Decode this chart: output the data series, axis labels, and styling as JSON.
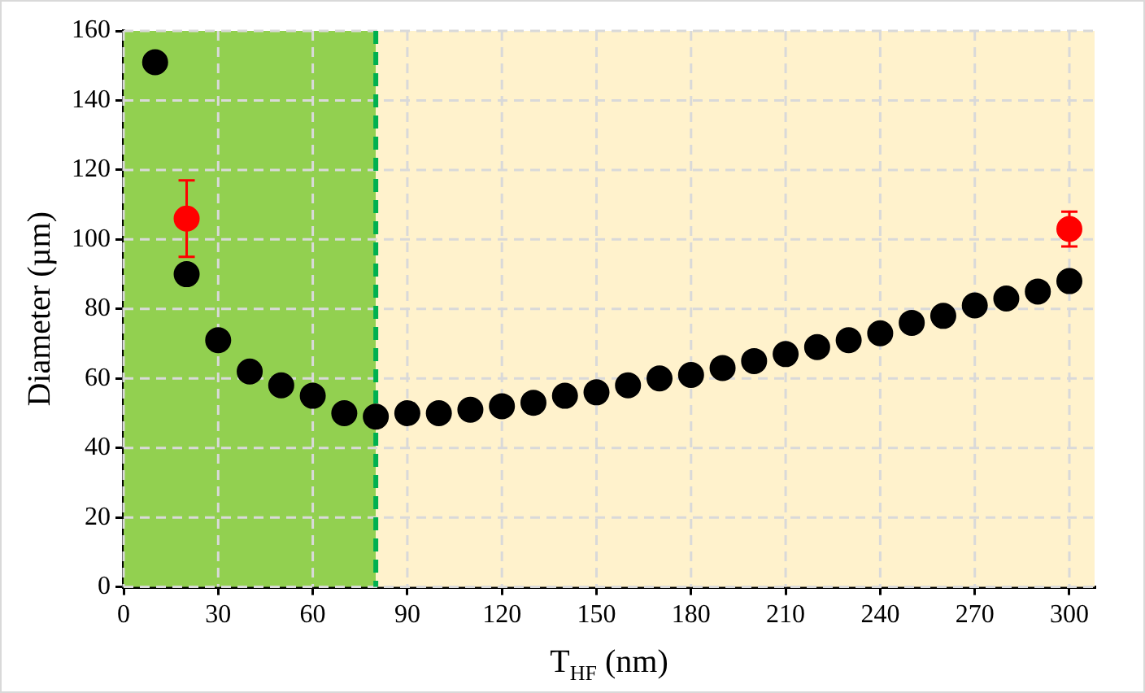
{
  "chart_data": {
    "type": "scatter",
    "xlabel": "T$_{HF}$ (nm)",
    "ylabel": "Diameter (µm)",
    "xlim": [
      0,
      308
    ],
    "xticks": [
      0,
      30,
      60,
      90,
      120,
      150,
      180,
      210,
      240,
      270,
      300
    ],
    "ylim": [
      0,
      160
    ],
    "yticks": [
      0,
      20,
      40,
      60,
      80,
      100,
      120,
      140,
      160
    ],
    "grid": true,
    "legend": false,
    "marker": "circle",
    "series": [
      {
        "color": "#000000",
        "x": [
          10,
          20,
          30,
          40,
          50,
          60,
          70,
          80,
          90,
          100,
          110,
          120,
          130,
          140,
          150,
          160,
          170,
          180,
          190,
          200,
          210,
          220,
          230,
          240,
          250,
          260,
          270,
          280,
          290,
          300
        ],
        "values": [
          151,
          90,
          71,
          62,
          58,
          55,
          50,
          49,
          50,
          50,
          51,
          52,
          53,
          55,
          56,
          58,
          60,
          61,
          63,
          65,
          67,
          69,
          71,
          73,
          76,
          78,
          81,
          83,
          85,
          88
        ]
      },
      {
        "color": "#ff0000",
        "x": [
          20,
          300
        ],
        "values": [
          106,
          103
        ],
        "errors": [
          11,
          5
        ]
      }
    ],
    "bands": [
      {
        "axis": "x",
        "from": 0,
        "to": 80,
        "color": "#92d050"
      },
      {
        "axis": "x",
        "from": 80,
        "to": 308,
        "color": "#fff2cc"
      }
    ],
    "ref_lines": [
      {
        "axis": "x",
        "value": 80,
        "color": "#00b050",
        "line_style": "dashed"
      }
    ]
  }
}
